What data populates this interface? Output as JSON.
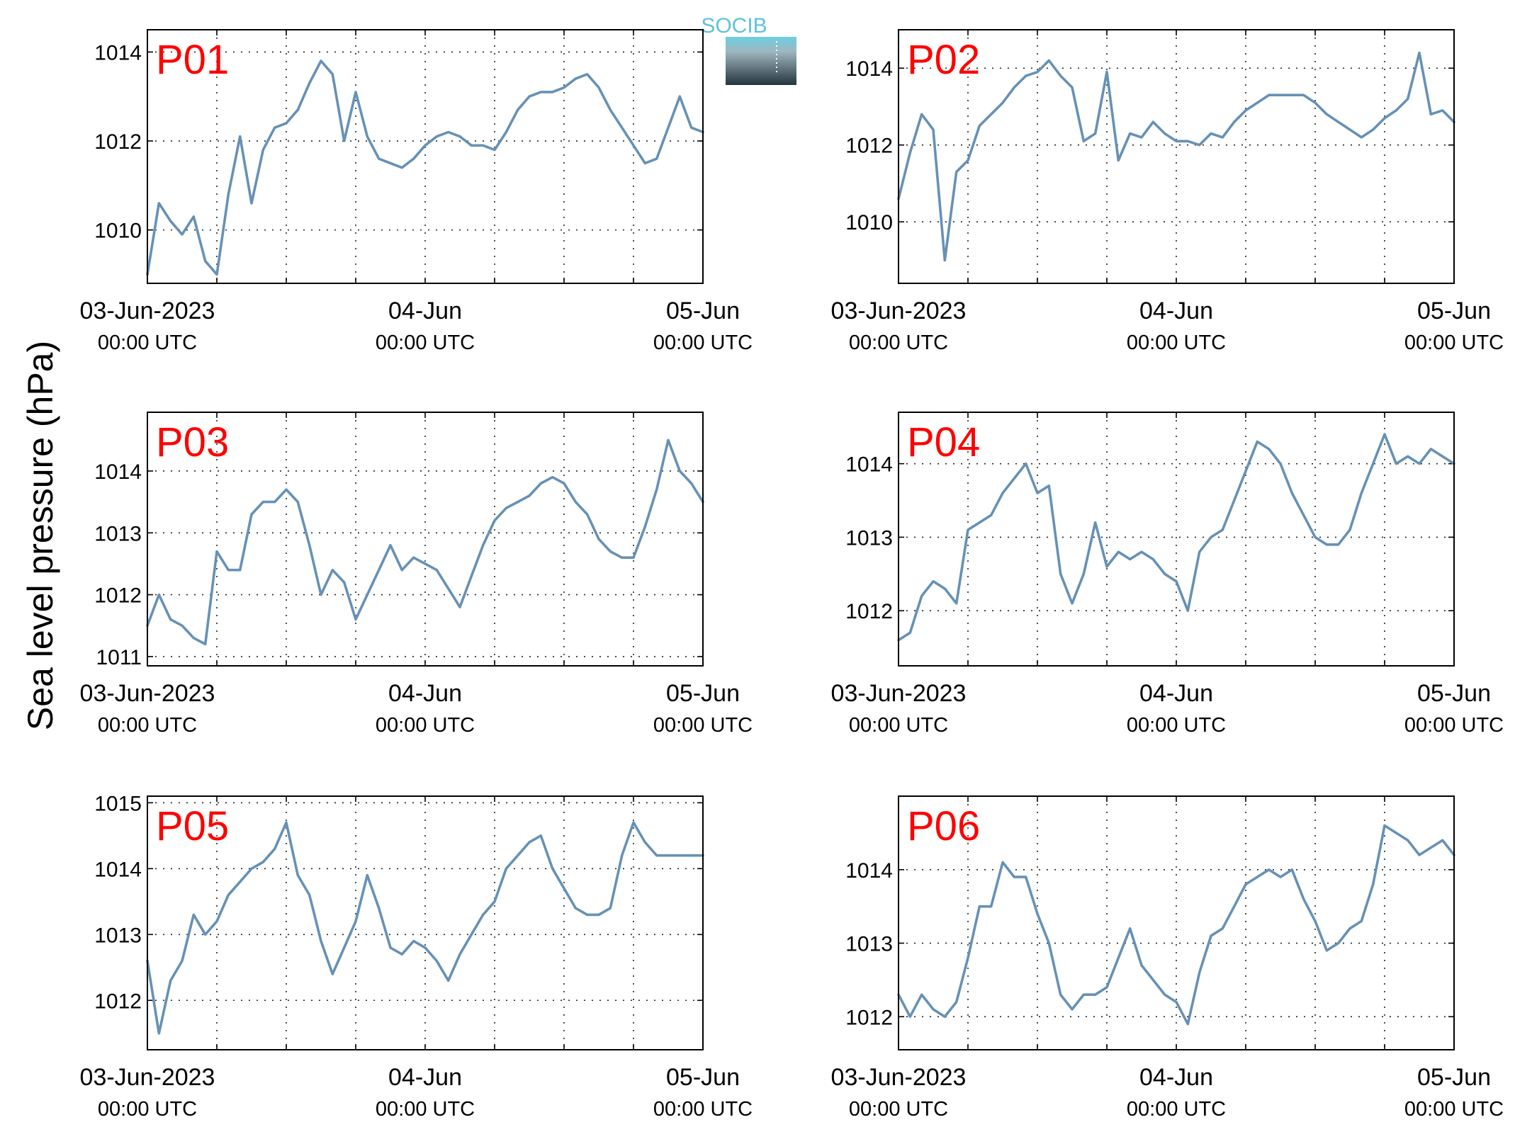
{
  "figure": {
    "ylabel": "Sea level pressure (hPa)",
    "logo_text": "SOCIB",
    "line_color": "#6791b5",
    "title_color": "#ff0000"
  },
  "chart_data": [
    {
      "type": "line",
      "title": "P01",
      "xlabel": "",
      "ylabel": "Sea level pressure (hPa)",
      "x_range": [
        "03-Jun-2023 00:00 UTC",
        "05-Jun-2023 00:00 UTC"
      ],
      "x_ticks": [
        {
          "label": "03-Jun-2023",
          "sub": "00:00 UTC"
        },
        {
          "label": "04-Jun",
          "sub": "00:00 UTC"
        },
        {
          "label": "05-Jun",
          "sub": "00:00 UTC"
        }
      ],
      "ylim": [
        1008.8,
        1014.5
      ],
      "yticks": [
        1010,
        1012,
        1014
      ],
      "grid": true,
      "x_hours": [
        0,
        1,
        2,
        3,
        4,
        5,
        6,
        7,
        8,
        9,
        10,
        11,
        12,
        13,
        14,
        15,
        16,
        17,
        18,
        19,
        20,
        21,
        22,
        23,
        24,
        25,
        26,
        27,
        28,
        29,
        30,
        31,
        32,
        33,
        34,
        35,
        36,
        37,
        38,
        39,
        40,
        41,
        42,
        43,
        44,
        45,
        46,
        47,
        48
      ],
      "series": [
        {
          "values": [
            1009.0,
            1010.6,
            1010.2,
            1009.9,
            1010.3,
            1009.3,
            1009.0,
            1010.8,
            1012.1,
            1010.6,
            1011.8,
            1012.3,
            1012.4,
            1012.7,
            1013.3,
            1013.8,
            1013.5,
            1012.0,
            1013.1,
            1012.1,
            1011.6,
            1011.5,
            1011.4,
            1011.6,
            1011.9,
            1012.1,
            1012.2,
            1012.1,
            1011.9,
            1011.9,
            1011.8,
            1012.2,
            1012.7,
            1013.0,
            1013.1,
            1013.1,
            1013.2,
            1013.4,
            1013.5,
            1013.2,
            1012.7,
            1012.3,
            1011.9,
            1011.5,
            1011.6,
            1012.3,
            1013.0,
            1012.3,
            1012.2
          ]
        }
      ]
    },
    {
      "type": "line",
      "title": "P02",
      "xlabel": "",
      "ylabel": "Sea level pressure (hPa)",
      "x_range": [
        "03-Jun-2023 00:00 UTC",
        "05-Jun-2023 00:00 UTC"
      ],
      "x_ticks": [
        {
          "label": "03-Jun-2023",
          "sub": "00:00 UTC"
        },
        {
          "label": "04-Jun",
          "sub": "00:00 UTC"
        },
        {
          "label": "05-Jun",
          "sub": "00:00 UTC"
        }
      ],
      "ylim": [
        1008.4,
        1015.0
      ],
      "yticks": [
        1010,
        1012,
        1014
      ],
      "grid": true,
      "x_hours": [
        0,
        1,
        2,
        3,
        4,
        5,
        6,
        7,
        8,
        9,
        10,
        11,
        12,
        13,
        14,
        15,
        16,
        17,
        18,
        19,
        20,
        21,
        22,
        23,
        24,
        25,
        26,
        27,
        28,
        29,
        30,
        31,
        32,
        33,
        34,
        35,
        36,
        37,
        38,
        39,
        40,
        41,
        42,
        43,
        44,
        45,
        46,
        47,
        48
      ],
      "series": [
        {
          "values": [
            1010.6,
            1011.8,
            1012.8,
            1012.4,
            1009.0,
            1011.3,
            1011.6,
            1012.5,
            1012.8,
            1013.1,
            1013.5,
            1013.8,
            1013.9,
            1014.2,
            1013.8,
            1013.5,
            1012.1,
            1012.3,
            1013.9,
            1011.6,
            1012.3,
            1012.2,
            1012.6,
            1012.3,
            1012.1,
            1012.1,
            1012.0,
            1012.3,
            1012.2,
            1012.6,
            1012.9,
            1013.1,
            1013.3,
            1013.3,
            1013.3,
            1013.3,
            1013.1,
            1012.8,
            1012.6,
            1012.4,
            1012.2,
            1012.4,
            1012.7,
            1012.9,
            1013.2,
            1014.4,
            1012.8,
            1012.9,
            1012.6
          ]
        }
      ]
    },
    {
      "type": "line",
      "title": "P03",
      "xlabel": "",
      "ylabel": "Sea level pressure (hPa)",
      "x_range": [
        "03-Jun-2023 00:00 UTC",
        "05-Jun-2023 00:00 UTC"
      ],
      "x_ticks": [
        {
          "label": "03-Jun-2023",
          "sub": "00:00 UTC"
        },
        {
          "label": "04-Jun",
          "sub": "00:00 UTC"
        },
        {
          "label": "05-Jun",
          "sub": "00:00 UTC"
        }
      ],
      "ylim": [
        1010.85,
        1014.95
      ],
      "yticks": [
        1011,
        1012,
        1013,
        1014
      ],
      "grid": true,
      "x_hours": [
        0,
        1,
        2,
        3,
        4,
        5,
        6,
        7,
        8,
        9,
        10,
        11,
        12,
        13,
        14,
        15,
        16,
        17,
        18,
        19,
        20,
        21,
        22,
        23,
        24,
        25,
        26,
        27,
        28,
        29,
        30,
        31,
        32,
        33,
        34,
        35,
        36,
        37,
        38,
        39,
        40,
        41,
        42,
        43,
        44,
        45,
        46,
        47,
        48
      ],
      "series": [
        {
          "values": [
            1011.5,
            1012.0,
            1011.6,
            1011.5,
            1011.3,
            1011.2,
            1012.7,
            1012.4,
            1012.4,
            1013.3,
            1013.5,
            1013.5,
            1013.7,
            1013.5,
            1012.8,
            1012.0,
            1012.4,
            1012.2,
            1011.6,
            1012.0,
            1012.4,
            1012.8,
            1012.4,
            1012.6,
            1012.5,
            1012.4,
            1012.1,
            1011.8,
            1012.3,
            1012.8,
            1013.2,
            1013.4,
            1013.5,
            1013.6,
            1013.8,
            1013.9,
            1013.8,
            1013.5,
            1013.3,
            1012.9,
            1012.7,
            1012.6,
            1012.6,
            1013.1,
            1013.7,
            1014.5,
            1014.0,
            1013.8,
            1013.5
          ]
        }
      ]
    },
    {
      "type": "line",
      "title": "P04",
      "xlabel": "",
      "ylabel": "Sea level pressure (hPa)",
      "x_range": [
        "03-Jun-2023 00:00 UTC",
        "05-Jun-2023 00:00 UTC"
      ],
      "x_ticks": [
        {
          "label": "03-Jun-2023",
          "sub": "00:00 UTC"
        },
        {
          "label": "04-Jun",
          "sub": "00:00 UTC"
        },
        {
          "label": "05-Jun",
          "sub": "00:00 UTC"
        }
      ],
      "ylim": [
        1011.25,
        1014.7
      ],
      "yticks": [
        1012,
        1013,
        1014
      ],
      "grid": true,
      "x_hours": [
        0,
        1,
        2,
        3,
        4,
        5,
        6,
        7,
        8,
        9,
        10,
        11,
        12,
        13,
        14,
        15,
        16,
        17,
        18,
        19,
        20,
        21,
        22,
        23,
        24,
        25,
        26,
        27,
        28,
        29,
        30,
        31,
        32,
        33,
        34,
        35,
        36,
        37,
        38,
        39,
        40,
        41,
        42,
        43,
        44,
        45,
        46,
        47,
        48
      ],
      "series": [
        {
          "values": [
            1011.6,
            1011.7,
            1012.2,
            1012.4,
            1012.3,
            1012.1,
            1013.1,
            1013.2,
            1013.3,
            1013.6,
            1013.8,
            1014.0,
            1013.6,
            1013.7,
            1012.5,
            1012.1,
            1012.5,
            1013.2,
            1012.6,
            1012.8,
            1012.7,
            1012.8,
            1012.7,
            1012.5,
            1012.4,
            1012.0,
            1012.8,
            1013.0,
            1013.1,
            1013.5,
            1013.9,
            1014.3,
            1014.2,
            1014.0,
            1013.6,
            1013.3,
            1013.0,
            1012.9,
            1012.9,
            1013.1,
            1013.6,
            1014.0,
            1014.4,
            1014.0,
            1014.1,
            1014.0,
            1014.2,
            1014.1,
            1014.0
          ]
        }
      ]
    },
    {
      "type": "line",
      "title": "P05",
      "xlabel": "",
      "ylabel": "Sea level pressure (hPa)",
      "x_range": [
        "03-Jun-2023 00:00 UTC",
        "05-Jun-2023 00:00 UTC"
      ],
      "x_ticks": [
        {
          "label": "03-Jun-2023",
          "sub": "00:00 UTC"
        },
        {
          "label": "04-Jun",
          "sub": "00:00 UTC"
        },
        {
          "label": "05-Jun",
          "sub": "00:00 UTC"
        }
      ],
      "ylim": [
        1011.25,
        1015.1
      ],
      "yticks": [
        1012,
        1013,
        1014,
        1015
      ],
      "grid": true,
      "x_hours": [
        0,
        1,
        2,
        3,
        4,
        5,
        6,
        7,
        8,
        9,
        10,
        11,
        12,
        13,
        14,
        15,
        16,
        17,
        18,
        19,
        20,
        21,
        22,
        23,
        24,
        25,
        26,
        27,
        28,
        29,
        30,
        31,
        32,
        33,
        34,
        35,
        36,
        37,
        38,
        39,
        40,
        41,
        42,
        43,
        44,
        45,
        46,
        47,
        48
      ],
      "series": [
        {
          "values": [
            1012.6,
            1011.5,
            1012.3,
            1012.6,
            1013.3,
            1013.0,
            1013.2,
            1013.6,
            1013.8,
            1014.0,
            1014.1,
            1014.3,
            1014.7,
            1013.9,
            1013.6,
            1012.9,
            1012.4,
            1012.8,
            1013.2,
            1013.9,
            1013.4,
            1012.8,
            1012.7,
            1012.9,
            1012.8,
            1012.6,
            1012.3,
            1012.7,
            1013.0,
            1013.3,
            1013.5,
            1014.0,
            1014.2,
            1014.4,
            1014.5,
            1014.0,
            1013.7,
            1013.4,
            1013.3,
            1013.3,
            1013.4,
            1014.2,
            1014.7,
            1014.4,
            1014.2,
            1014.2,
            1014.2,
            1014.2,
            1014.2
          ]
        }
      ]
    },
    {
      "type": "line",
      "title": "P06",
      "xlabel": "",
      "ylabel": "Sea level pressure (hPa)",
      "x_range": [
        "03-Jun-2023 00:00 UTC",
        "05-Jun-2023 00:00 UTC"
      ],
      "x_ticks": [
        {
          "label": "03-Jun-2023",
          "sub": "00:00 UTC"
        },
        {
          "label": "04-Jun",
          "sub": "00:00 UTC"
        },
        {
          "label": "05-Jun",
          "sub": "00:00 UTC"
        }
      ],
      "ylim": [
        1011.55,
        1015.0
      ],
      "yticks": [
        1012,
        1013,
        1014
      ],
      "grid": true,
      "x_hours": [
        0,
        1,
        2,
        3,
        4,
        5,
        6,
        7,
        8,
        9,
        10,
        11,
        12,
        13,
        14,
        15,
        16,
        17,
        18,
        19,
        20,
        21,
        22,
        23,
        24,
        25,
        26,
        27,
        28,
        29,
        30,
        31,
        32,
        33,
        34,
        35,
        36,
        37,
        38,
        39,
        40,
        41,
        42,
        43,
        44,
        45,
        46,
        47,
        48
      ],
      "series": [
        {
          "values": [
            1012.3,
            1012.0,
            1012.3,
            1012.1,
            1012.0,
            1012.2,
            1012.8,
            1013.5,
            1013.5,
            1014.1,
            1013.9,
            1013.9,
            1013.4,
            1013.0,
            1012.3,
            1012.1,
            1012.3,
            1012.3,
            1012.4,
            1012.8,
            1013.2,
            1012.7,
            1012.5,
            1012.3,
            1012.2,
            1011.9,
            1012.6,
            1013.1,
            1013.2,
            1013.5,
            1013.8,
            1013.9,
            1014.0,
            1013.9,
            1014.0,
            1013.6,
            1013.3,
            1012.9,
            1013.0,
            1013.2,
            1013.3,
            1013.8,
            1014.6,
            1014.5,
            1014.4,
            1014.2,
            1014.3,
            1014.4,
            1014.2
          ]
        }
      ]
    }
  ]
}
